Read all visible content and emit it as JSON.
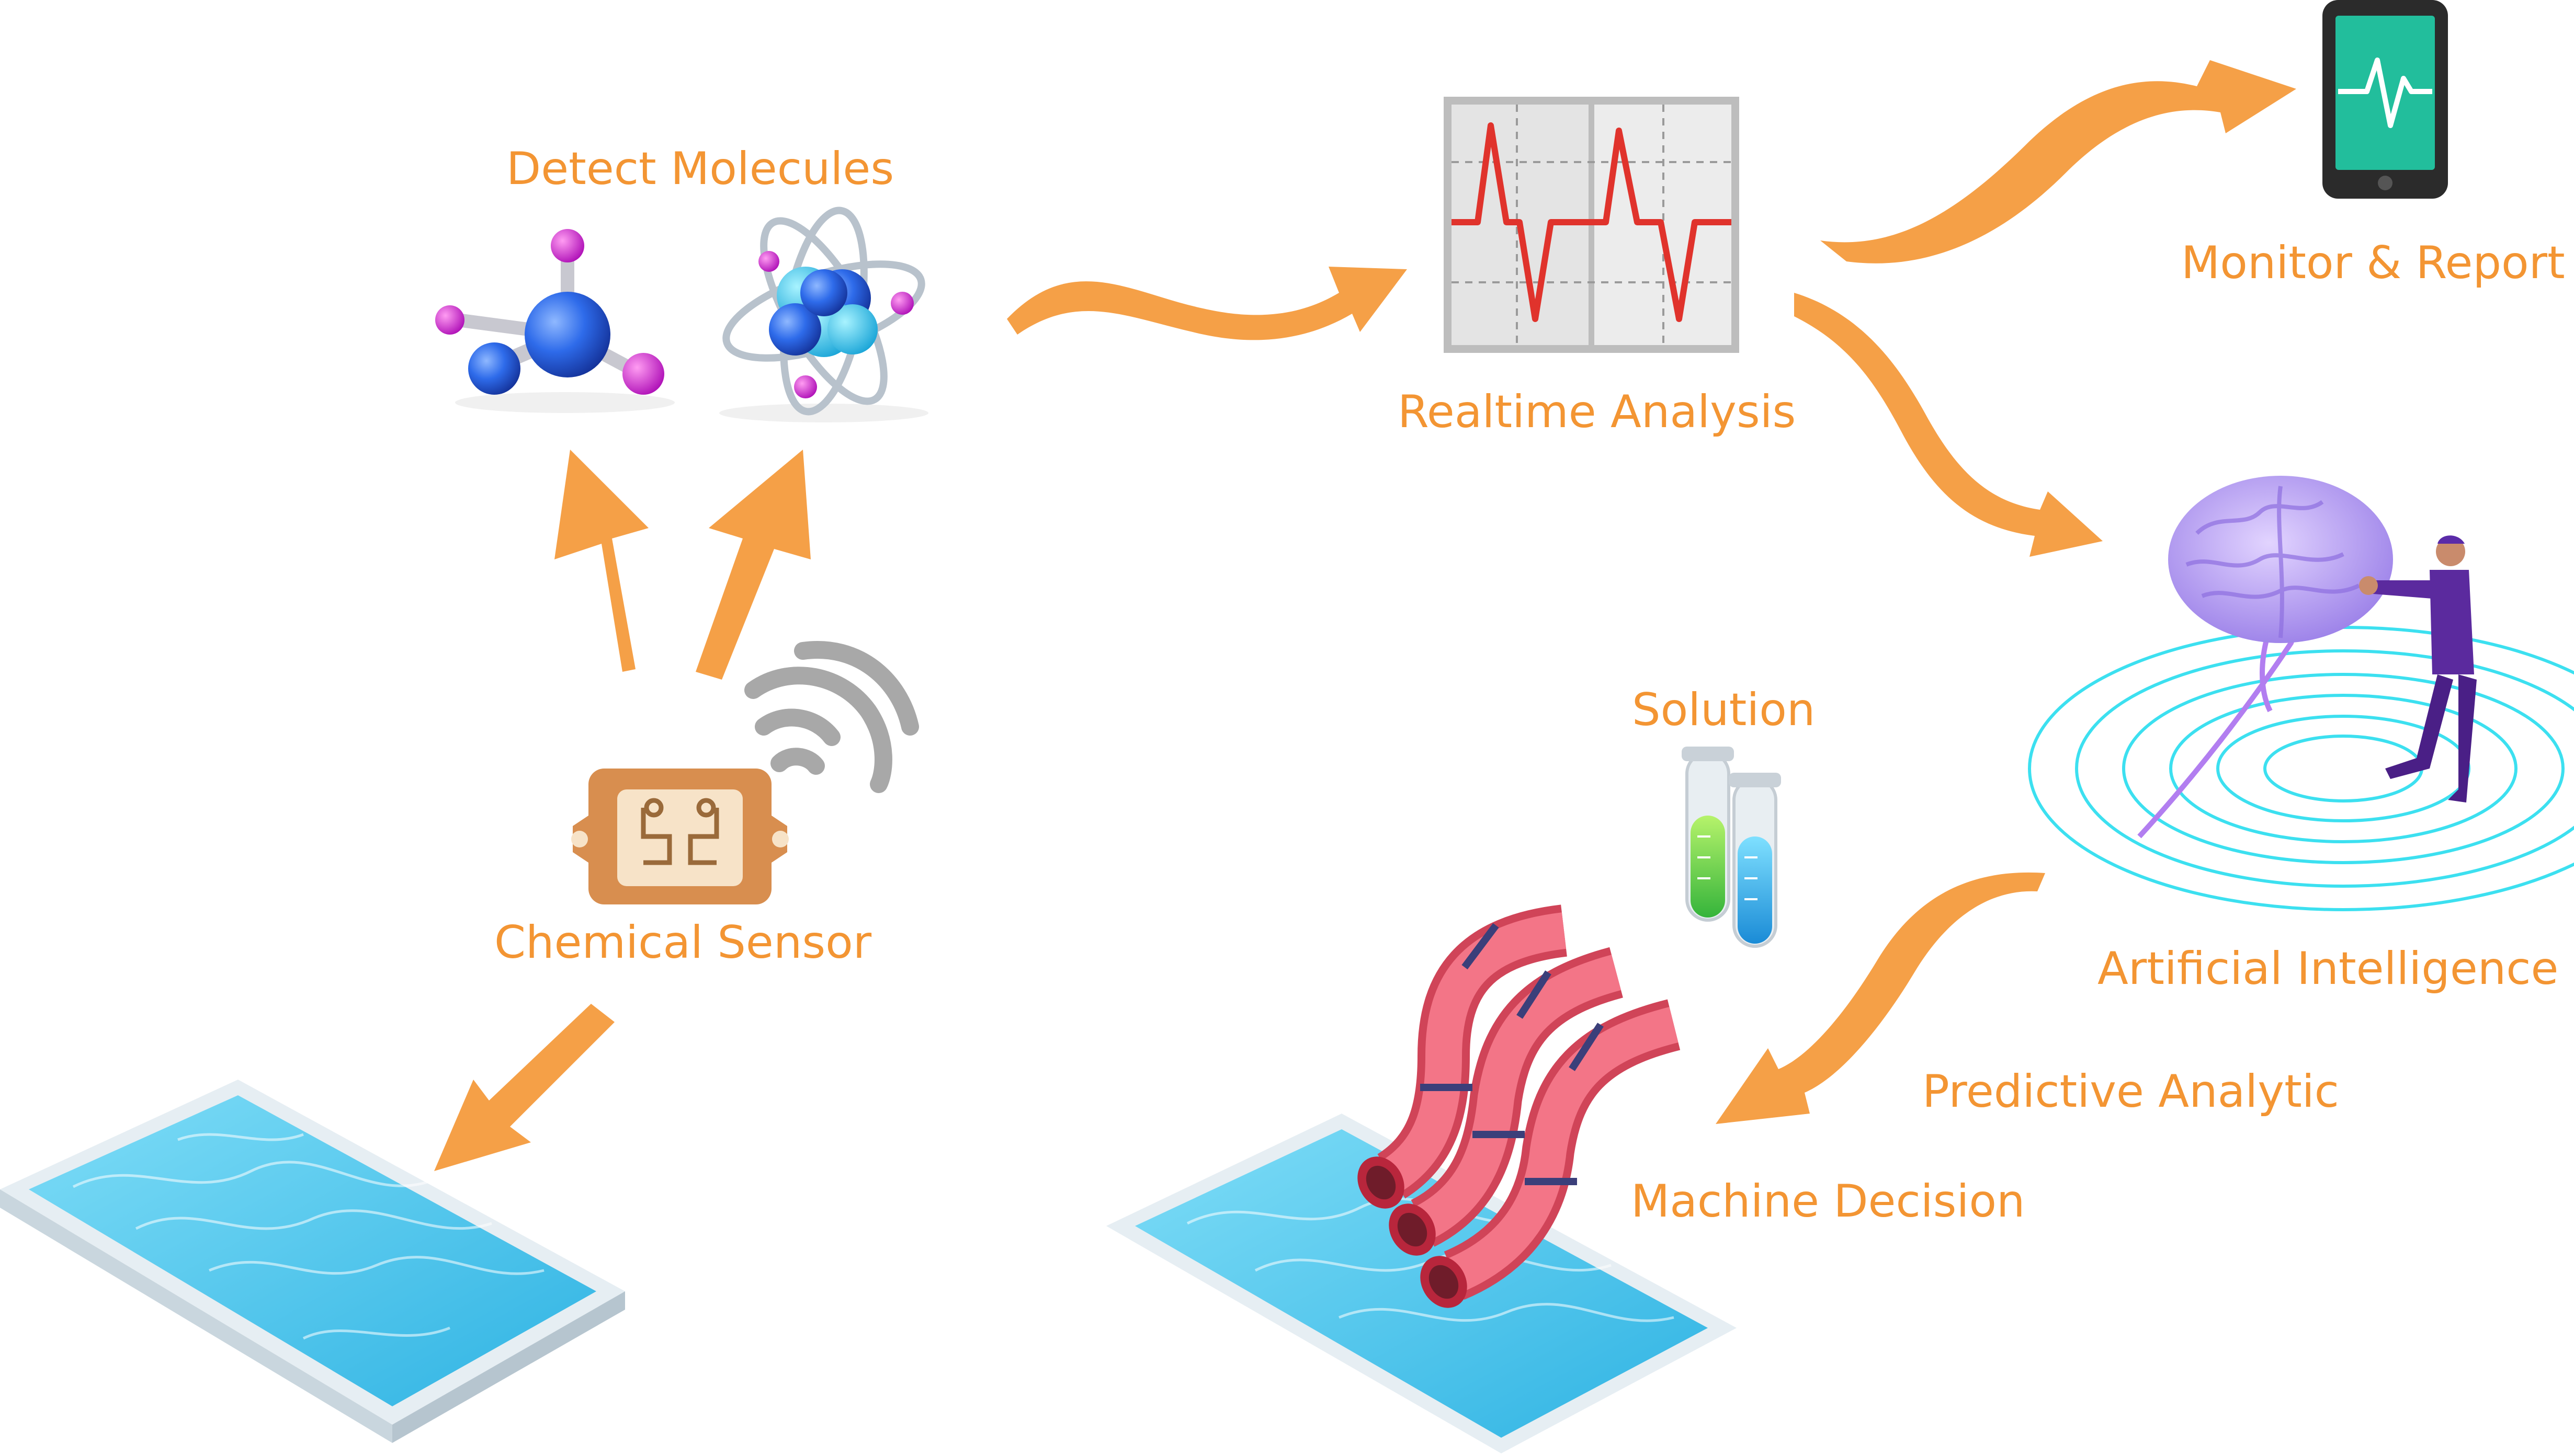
{
  "colors": {
    "accent": "#F5A047",
    "label": "#F39533",
    "water": "#4CC4EC",
    "pipe": "#EE6577",
    "brain": "#B49CF2",
    "ring": "#3CE0F0",
    "monitor": "#22BE9C"
  },
  "labels": {
    "detect_molecules": "Detect Molecules",
    "realtime_analysis": "Realtime Analysis",
    "monitor_report": "Monitor & Report",
    "solution": "Solution",
    "chemical_sensor": "Chemical Sensor",
    "artificial_intelligence": "Artificial Intelligence",
    "predictive_analytic": "Predictive Analytic",
    "machine_decision": "Machine Decision"
  },
  "icons": [
    "molecule-icon",
    "atom-icon",
    "ecg-chart-icon",
    "phone-monitor-icon",
    "brain-ai-icon",
    "test-tubes-icon",
    "chemical-sensor-icon",
    "wireless-signal-icon",
    "water-pool-icon",
    "pipes-icon"
  ]
}
